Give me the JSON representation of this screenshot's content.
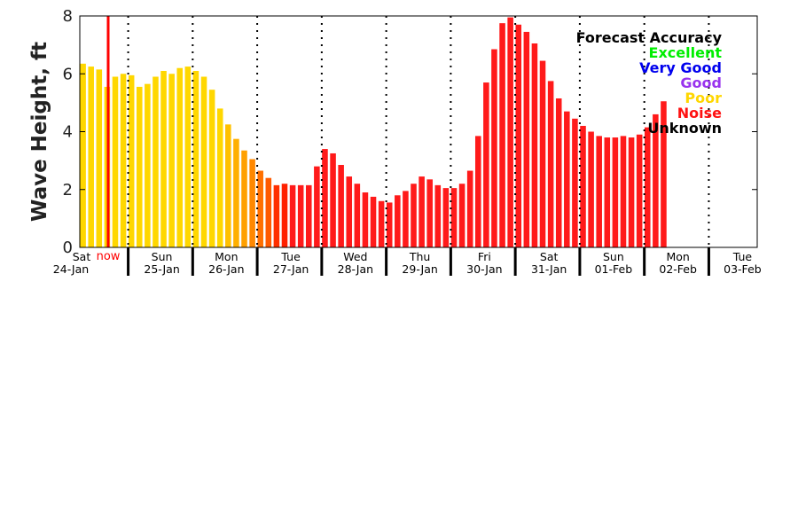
{
  "chart_data": {
    "type": "bar",
    "ylabel": "Wave Height, ft",
    "ylim": [
      0,
      8
    ],
    "yticks": [
      "0",
      "2",
      "4",
      "6",
      "8"
    ],
    "grid": false,
    "days": [
      {
        "dow": "Sat",
        "date": "24-Jan"
      },
      {
        "dow": "Sun",
        "date": "25-Jan"
      },
      {
        "dow": "Mon",
        "date": "26-Jan"
      },
      {
        "dow": "Tue",
        "date": "27-Jan"
      },
      {
        "dow": "Wed",
        "date": "28-Jan"
      },
      {
        "dow": "Thu",
        "date": "29-Jan"
      },
      {
        "dow": "Fri",
        "date": "30-Jan"
      },
      {
        "dow": "Sat",
        "date": "31-Jan"
      },
      {
        "dow": "Sun",
        "date": "01-Feb"
      },
      {
        "dow": "Mon",
        "date": "02-Feb"
      },
      {
        "dow": "Tue",
        "date": "03-Feb"
      }
    ],
    "now_label": "now",
    "now_hour": 3.7,
    "bar_interval_hours": 3,
    "series": [
      {
        "values": [
          6.35,
          6.25,
          6.15,
          5.55,
          5.9,
          6.0,
          5.95,
          5.55,
          5.65,
          5.9,
          6.1,
          6.0,
          6.2,
          6.25,
          6.1,
          5.9,
          5.45,
          4.8,
          4.25,
          3.75,
          3.35,
          3.05,
          2.65,
          2.4,
          2.15,
          2.2,
          2.15,
          2.15,
          2.15,
          2.8,
          3.4,
          3.25,
          2.85,
          2.45,
          2.2,
          1.9,
          1.75,
          1.6,
          1.55,
          1.8,
          1.95,
          2.2,
          2.45,
          2.35,
          2.15,
          2.05,
          2.05,
          2.2,
          2.65,
          3.85,
          5.7,
          6.85,
          7.75,
          7.95,
          7.7,
          7.45,
          7.05,
          6.45,
          5.75,
          5.15,
          4.7,
          4.45,
          4.2,
          4.0,
          3.85,
          3.8,
          3.8,
          3.85,
          3.8,
          3.9,
          4.15,
          4.6,
          5.05
        ],
        "colors": [
          "#ffd700",
          "#ffd700",
          "#ffd700",
          "#ffd700",
          "#ffd700",
          "#ffd700",
          "#ffd700",
          "#ffd700",
          "#ffd700",
          "#ffd700",
          "#ffd700",
          "#ffd700",
          "#ffd700",
          "#ffd700",
          "#ffd700",
          "#ffd700",
          "#ffd700",
          "#ffd700",
          "#ffc000",
          "#ffb000",
          "#ffa000",
          "#ff8800",
          "#ff7000",
          "#ff5a00",
          "#ff3000",
          "#ff2000",
          "#ff1a1a",
          "#ff1a1a",
          "#ff1a1a",
          "#ff1a1a",
          "#ff1a1a",
          "#ff1a1a",
          "#ff1a1a",
          "#ff1a1a",
          "#ff1a1a",
          "#ff1a1a",
          "#ff1a1a",
          "#ff1a1a",
          "#ff1a1a",
          "#ff1a1a",
          "#ff1a1a",
          "#ff1a1a",
          "#ff1a1a",
          "#ff1a1a",
          "#ff1a1a",
          "#ff1a1a",
          "#ff1a1a",
          "#ff1a1a",
          "#ff1a1a",
          "#ff1a1a",
          "#ff1a1a",
          "#ff1a1a",
          "#ff1a1a",
          "#ff1a1a",
          "#ff1a1a",
          "#ff1a1a",
          "#ff1a1a",
          "#ff1a1a",
          "#ff1a1a",
          "#ff1a1a",
          "#ff1a1a",
          "#ff1a1a",
          "#ff1a1a",
          "#ff1a1a",
          "#ff1a1a",
          "#ff1a1a",
          "#ff1a1a",
          "#ff1a1a",
          "#ff1a1a",
          "#ff1a1a",
          "#ff1a1a",
          "#ff1a1a",
          "#ff1a1a"
        ]
      }
    ],
    "legend": {
      "title": "Forecast Accuracy",
      "placement": "top-right",
      "items": [
        {
          "label": "Excellent",
          "color": "#00ee00"
        },
        {
          "label": "Very Good",
          "color": "#0000ee"
        },
        {
          "label": "Good",
          "color": "#9933ee"
        },
        {
          "label": "Poor",
          "color": "#ffd700"
        },
        {
          "label": "Noise",
          "color": "#ff1111"
        },
        {
          "label": "Unknown",
          "color": "#000000"
        }
      ]
    }
  }
}
